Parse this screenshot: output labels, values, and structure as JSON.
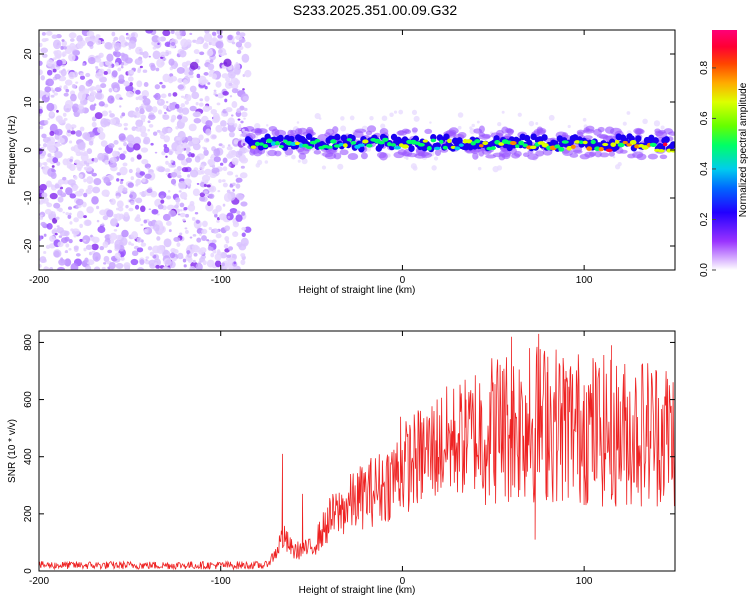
{
  "page_title": "S233.2025.351.00.09.G32",
  "chart_data": [
    {
      "type": "heatmap",
      "title": "S233.2025.351.00.09.G32",
      "xlabel": "Height of straight line (km)",
      "ylabel": "Frequency (Hz)",
      "xlim": [
        -200,
        150
      ],
      "ylim": [
        -25,
        25
      ],
      "x_ticks": [
        -200,
        -100,
        0,
        100
      ],
      "x_tick_labels": [
        "-200",
        "-100",
        "0",
        "100"
      ],
      "y_ticks": [
        -20,
        -10,
        0,
        10,
        20
      ],
      "y_tick_labels": [
        "-20",
        "-10",
        "0",
        "10",
        "20"
      ],
      "colorbar": {
        "label": "Normalized spectral amplitude",
        "range": [
          0,
          0.95
        ],
        "ticks": [
          0.0,
          0.2,
          0.4,
          0.6,
          0.8
        ],
        "tick_labels": [
          "0.0",
          "0.2",
          "0.4",
          "0.6",
          "0.8"
        ],
        "colors": [
          "#ffffff",
          "#cc88ff",
          "#8800ee",
          "#0000ff",
          "#00ccff",
          "#00ff66",
          "#88ff00",
          "#ffee00",
          "#ff8800",
          "#ff0000",
          "#ff0066"
        ]
      },
      "description_regions": {
        "noise_region_x": [
          -200,
          -85
        ],
        "signal_band_x": [
          -85,
          150
        ],
        "signal_center_hz": [
          2,
          0.5
        ]
      }
    },
    {
      "type": "line",
      "xlabel": "Height of straight line (km)",
      "ylabel": "SNR (10 * v/v)",
      "xlim": [
        -200,
        150
      ],
      "ylim": [
        0,
        840
      ],
      "x_ticks": [
        -200,
        -100,
        0,
        100
      ],
      "x_tick_labels": [
        "-200",
        "-100",
        "0",
        "100"
      ],
      "y_ticks": [
        0,
        200,
        400,
        600,
        800
      ],
      "y_tick_labels": [
        "0",
        "200",
        "400",
        "600",
        "800"
      ],
      "line_color": "#ee2222",
      "trend_points": {
        "x": [
          -200,
          -100,
          -75,
          -70,
          -66,
          -60,
          -50,
          -40,
          -30,
          -20,
          -10,
          0,
          10,
          20,
          30,
          40,
          50,
          60,
          70,
          80,
          90,
          100,
          110,
          120,
          130,
          140,
          150
        ],
        "y": [
          20,
          20,
          20,
          60,
          120,
          70,
          80,
          180,
          230,
          270,
          300,
          360,
          400,
          440,
          460,
          480,
          500,
          510,
          520,
          520,
          510,
          500,
          490,
          480,
          490,
          490,
          480
        ]
      },
      "spikes": {
        "x": [
          -66,
          -55,
          -1,
          35,
          55,
          60,
          70,
          75,
          80,
          90,
          100,
          105,
          115
        ],
        "y": [
          410,
          270,
          540,
          600,
          700,
          820,
          780,
          830,
          750,
          700,
          650,
          730,
          790
        ]
      },
      "dips": {
        "x": [
          73,
          110,
          115
        ],
        "y": [
          110,
          300,
          250
        ]
      }
    }
  ]
}
